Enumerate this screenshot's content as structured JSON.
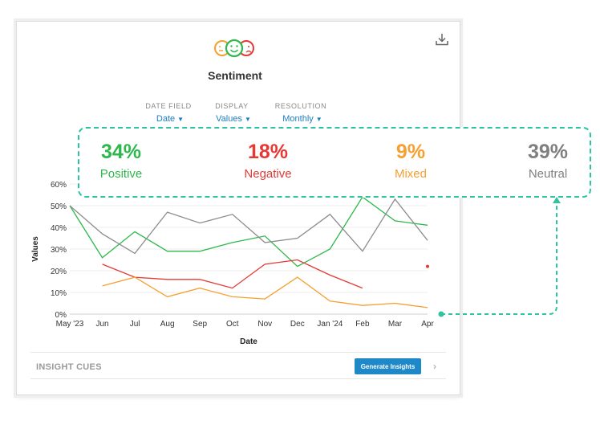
{
  "card": {
    "title": "Sentiment",
    "icons": {
      "download": "download-icon",
      "logo": "sentiment-faces-icon"
    }
  },
  "controls": [
    {
      "label": "DATE FIELD",
      "value": "Date"
    },
    {
      "label": "DISPLAY",
      "value": "Values"
    },
    {
      "label": "RESOLUTION",
      "value": "Monthly"
    }
  ],
  "summary": [
    {
      "pct": "34%",
      "label": "Positive",
      "color": "#2db84b"
    },
    {
      "pct": "18%",
      "label": "Negative",
      "color": "#e53935"
    },
    {
      "pct": "9%",
      "label": "Mixed",
      "color": "#f5a030"
    },
    {
      "pct": "39%",
      "label": "Neutral",
      "color": "#7f7f7f"
    }
  ],
  "insights": {
    "label": "INSIGHT CUES",
    "button": "Generate Insights",
    "chevron": "›"
  },
  "chart_data": {
    "type": "line",
    "xlabel": "Date",
    "ylabel": "Values",
    "ylim": [
      0,
      60
    ],
    "yticks": [
      "0%",
      "10%",
      "20%",
      "30%",
      "40%",
      "50%",
      "60%"
    ],
    "categories": [
      "May '23",
      "Jun",
      "Jul",
      "Aug",
      "Sep",
      "Oct",
      "Nov",
      "Dec",
      "Jan '24",
      "Feb",
      "Mar",
      "Apr"
    ],
    "grid": true,
    "series": [
      {
        "name": "Positive",
        "color": "#2db84b",
        "values": [
          50,
          26,
          38,
          29,
          29,
          33,
          36,
          22,
          30,
          54,
          43,
          41
        ]
      },
      {
        "name": "Negative",
        "color": "#e53935",
        "values": [
          null,
          23,
          17,
          16,
          16,
          12,
          23,
          25,
          18,
          12,
          null,
          22
        ]
      },
      {
        "name": "Mixed",
        "color": "#f5a030",
        "values": [
          null,
          13,
          17,
          8,
          12,
          8,
          7,
          17,
          6,
          4,
          5,
          3
        ]
      },
      {
        "name": "Neutral",
        "color": "#8c8c8c",
        "values": [
          50,
          37,
          28,
          47,
          42,
          46,
          33,
          35,
          46,
          29,
          53,
          34
        ]
      }
    ]
  }
}
